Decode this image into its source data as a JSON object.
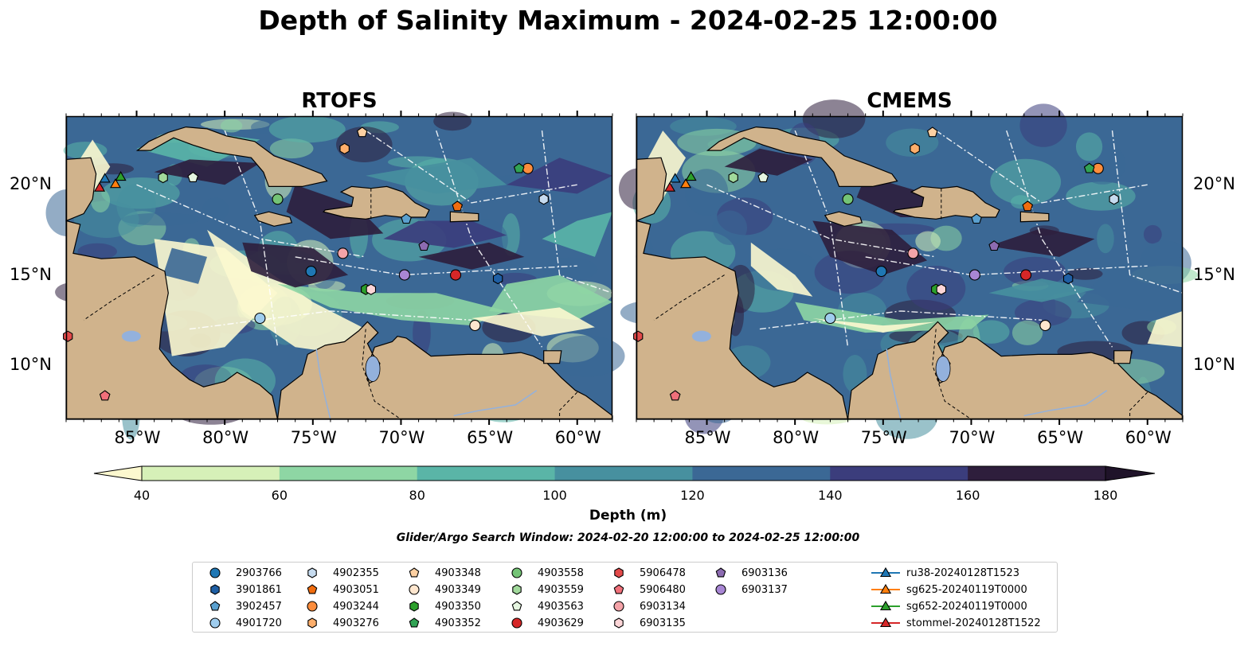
{
  "title": "Depth of Salinity Maximum - 2024-02-25 12:00:00",
  "panels": [
    {
      "name": "RTOFS"
    },
    {
      "name": "CMEMS"
    }
  ],
  "lon_labels": [
    "85°W",
    "80°W",
    "75°W",
    "70°W",
    "65°W",
    "60°W"
  ],
  "lat_labels": [
    "20°N",
    "15°N",
    "10°N"
  ],
  "colorbar": {
    "label": "Depth (m)",
    "ticks": [
      "40",
      "60",
      "80",
      "100",
      "120",
      "140",
      "160",
      "180"
    ],
    "colors": [
      "#d6f0b8",
      "#8ed6a4",
      "#5ab5a7",
      "#47909f",
      "#3b6895",
      "#3b3d7c",
      "#2e1e3c"
    ],
    "under_color": "#fcf8cf",
    "over_color": "#1f1329"
  },
  "search_window": "Glider/Argo Search Window: 2024-02-20 12:00:00 to 2024-02-25 12:00:00",
  "colors": {
    "land": "#d0b38c",
    "lake": "#93b1dc"
  },
  "legend": [
    {
      "label": "2903766",
      "marker": "circle",
      "color": "#1f77b4"
    },
    {
      "label": "3901861",
      "marker": "hexagon",
      "color": "#1f5fa4"
    },
    {
      "label": "3902457",
      "marker": "pentagon",
      "color": "#5aa0cf"
    },
    {
      "label": "4901720",
      "marker": "circle",
      "color": "#9fcdee"
    },
    {
      "label": "4902355",
      "marker": "hexagon",
      "color": "#c6dbef"
    },
    {
      "label": "4903051",
      "marker": "pentagon",
      "color": "#f16d0f"
    },
    {
      "label": "4903244",
      "marker": "circle",
      "color": "#fd8d3c"
    },
    {
      "label": "4903276",
      "marker": "hexagon",
      "color": "#fdae6b"
    },
    {
      "label": "4903348",
      "marker": "pentagon",
      "color": "#fdd0a2"
    },
    {
      "label": "4903349",
      "marker": "circle",
      "color": "#fee6ce"
    },
    {
      "label": "4903350",
      "marker": "hexagon",
      "color": "#2ca02c"
    },
    {
      "label": "4903352",
      "marker": "pentagon",
      "color": "#31a354"
    },
    {
      "label": "4903558",
      "marker": "circle",
      "color": "#74c476"
    },
    {
      "label": "4903559",
      "marker": "hexagon",
      "color": "#a1d99b"
    },
    {
      "label": "4903563",
      "marker": "pentagon",
      "color": "#e5f5e0"
    },
    {
      "label": "4903629",
      "marker": "circle",
      "color": "#d62728"
    },
    {
      "label": "5906478",
      "marker": "hexagon",
      "color": "#e34a4a"
    },
    {
      "label": "5906480",
      "marker": "pentagon",
      "color": "#f0707a"
    },
    {
      "label": "6903134",
      "marker": "circle",
      "color": "#f4a3a8"
    },
    {
      "label": "6903135",
      "marker": "hexagon",
      "color": "#fcd5d7"
    },
    {
      "label": "6903136",
      "marker": "pentagon",
      "color": "#8c6bb1"
    },
    {
      "label": "6903137",
      "marker": "circle",
      "color": "#a886d4"
    },
    {
      "label": "ru38-20240128T1523",
      "marker": "triangle-line",
      "color": "#1f77b4"
    },
    {
      "label": "sg625-20240119T0000",
      "marker": "triangle-line",
      "color": "#ff7f0e"
    },
    {
      "label": "sg652-20240119T0000",
      "marker": "triangle-line",
      "color": "#2ca02c"
    },
    {
      "label": "stommel-20240128T1522",
      "marker": "triangle-line",
      "color": "#d62728"
    }
  ],
  "floats": [
    {
      "id": "2903766",
      "lon": -75.1,
      "lat": 15.2
    },
    {
      "id": "3901861",
      "lon": -64.5,
      "lat": 14.8
    },
    {
      "id": "3902457",
      "lon": -69.7,
      "lat": 18.1
    },
    {
      "id": "4901720",
      "lon": -78.0,
      "lat": 12.6
    },
    {
      "id": "4902355",
      "lon": -61.9,
      "lat": 19.2
    },
    {
      "id": "4903051",
      "lon": -66.8,
      "lat": 18.8
    },
    {
      "id": "4903244",
      "lon": -62.8,
      "lat": 20.9
    },
    {
      "id": "4903276",
      "lon": -73.2,
      "lat": 22.0
    },
    {
      "id": "4903348",
      "lon": -72.2,
      "lat": 22.9
    },
    {
      "id": "4903349",
      "lon": -65.8,
      "lat": 12.2
    },
    {
      "id": "4903350",
      "lon": -72.0,
      "lat": 14.2
    },
    {
      "id": "4903352",
      "lon": -63.3,
      "lat": 20.9
    },
    {
      "id": "4903558",
      "lon": -77.0,
      "lat": 19.2
    },
    {
      "id": "4903559",
      "lon": -83.5,
      "lat": 20.4
    },
    {
      "id": "4903563",
      "lon": -81.8,
      "lat": 20.4
    },
    {
      "id": "4903629",
      "lon": -66.9,
      "lat": 15.0
    },
    {
      "id": "5906478",
      "lon": -88.9,
      "lat": 11.6
    },
    {
      "id": "5906480",
      "lon": -86.8,
      "lat": 8.3
    },
    {
      "id": "6903134",
      "lon": -73.3,
      "lat": 16.2
    },
    {
      "id": "6903135",
      "lon": -71.7,
      "lat": 14.2
    },
    {
      "id": "6903136",
      "lon": -68.7,
      "lat": 16.6
    },
    {
      "id": "6903137",
      "lon": -69.8,
      "lat": 15.0
    }
  ],
  "gliders": [
    {
      "id": "ru38-20240128T1523",
      "lon": -86.8,
      "lat": 20.3
    },
    {
      "id": "sg625-20240119T0000",
      "lon": -86.2,
      "lat": 20.0
    },
    {
      "id": "sg652-20240119T0000",
      "lon": -85.9,
      "lat": 20.4
    },
    {
      "id": "stommel-20240128T1522",
      "lon": -87.1,
      "lat": 19.8
    }
  ]
}
